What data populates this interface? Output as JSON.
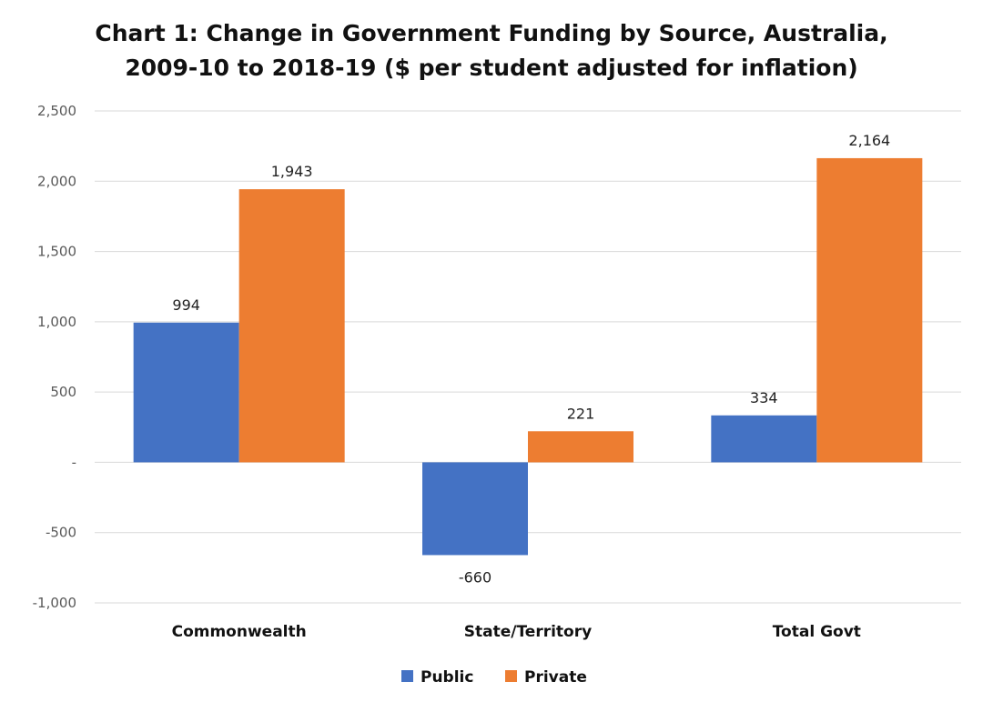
{
  "chart_data": {
    "type": "bar",
    "title_lines": [
      "Chart 1: Change in Government Funding by Source, Australia,",
      "2009-10 to 2018-19 ($ per student adjusted for inflation)"
    ],
    "categories": [
      "Commonwealth",
      "State/Territory",
      "Total Govt"
    ],
    "series": [
      {
        "name": "Public",
        "values": [
          994,
          -660,
          334
        ],
        "labels": [
          "994",
          "-660",
          "334"
        ],
        "color": "#4472C4"
      },
      {
        "name": "Private",
        "values": [
          1943,
          221,
          2164
        ],
        "labels": [
          "1,943",
          "221",
          "2,164"
        ],
        "color": "#ED7D31"
      }
    ],
    "ylim": [
      -1000,
      2500
    ],
    "yticks": [
      {
        "value": 2500,
        "label": "2,500"
      },
      {
        "value": 2000,
        "label": "2,000"
      },
      {
        "value": 1500,
        "label": "1,500"
      },
      {
        "value": 1000,
        "label": "1,000"
      },
      {
        "value": 500,
        "label": "500"
      },
      {
        "value": 0,
        "label": "-"
      },
      {
        "value": -500,
        "label": "-500"
      },
      {
        "value": -1000,
        "label": "-1,000"
      }
    ],
    "grid": true,
    "legend_position": "bottom",
    "gridline_color": "#D9D9D9"
  }
}
